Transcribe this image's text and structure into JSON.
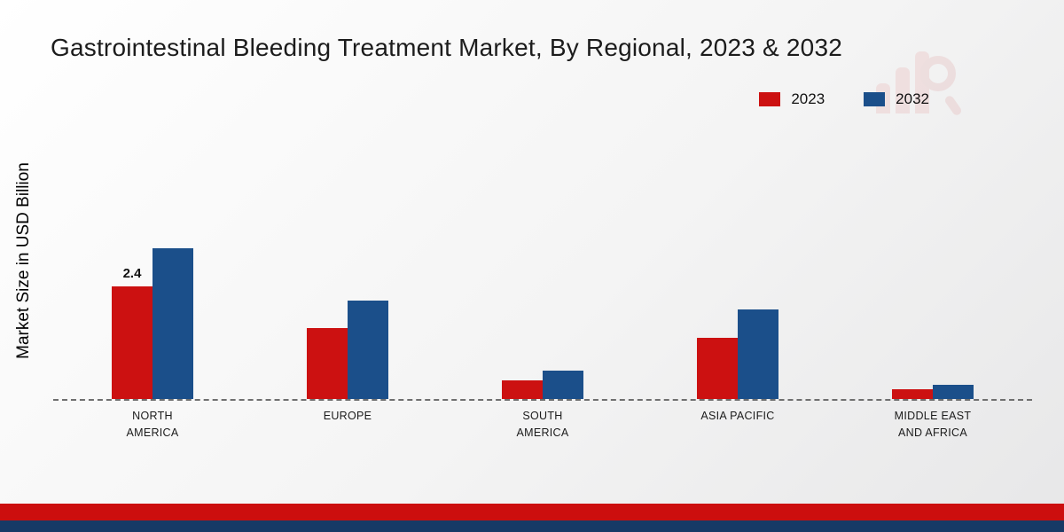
{
  "title": "Gastrointestinal Bleeding Treatment Market, By Regional, 2023 & 2032",
  "ylabel": "Market Size in USD Billion",
  "legend": [
    {
      "label": "2023",
      "color": "#cc1111"
    },
    {
      "label": "2032",
      "color": "#1b4f8a"
    }
  ],
  "colors": {
    "series_2023": "#cc1111",
    "series_2032": "#1b4f8a",
    "footer_red": "#cc0e0e",
    "footer_blue": "#173a66"
  },
  "chart_data": {
    "type": "bar",
    "title": "Gastrointestinal Bleeding Treatment Market, By Regional, 2023 & 2032",
    "xlabel": "",
    "ylabel": "Market Size in USD Billion",
    "categories": [
      "NORTH AMERICA",
      "EUROPE",
      "SOUTH AMERICA",
      "ASIA PACIFIC",
      "MIDDLE EAST AND AFRICA"
    ],
    "series": [
      {
        "name": "2023",
        "color": "#cc1111",
        "values": [
          2.4,
          1.5,
          0.4,
          1.3,
          0.2
        ]
      },
      {
        "name": "2032",
        "color": "#1b4f8a",
        "values": [
          3.2,
          2.1,
          0.6,
          1.9,
          0.3
        ]
      }
    ],
    "data_labels": [
      {
        "series": "2023",
        "category": "NORTH AMERICA",
        "text": "2.4"
      }
    ],
    "ylim": [
      0,
      3.5
    ],
    "grid": false,
    "baseline_style": "dashed",
    "legend_position": "top-right"
  }
}
